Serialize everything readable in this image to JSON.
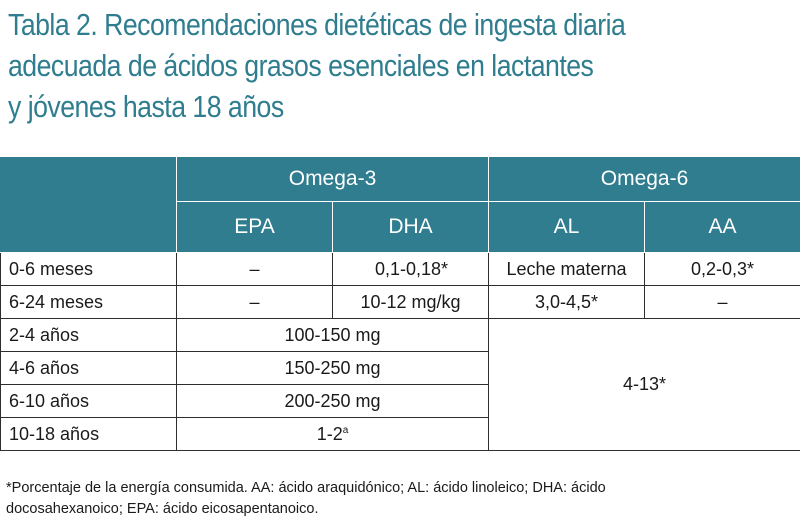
{
  "title": {
    "line1": "Tabla 2. Recomendaciones dietéticas de ingesta diaria",
    "line2": "adecuada de ácidos grasos esenciales en lactantes",
    "line3": "y jóvenes hasta 18 años"
  },
  "table": {
    "groups": {
      "omega3": "Omega-3",
      "omega6": "Omega-6"
    },
    "columns": {
      "epa": "EPA",
      "dha": "DHA",
      "al": "AL",
      "aa": "AA"
    },
    "rows": [
      {
        "age": "0-6 meses",
        "epa": "–",
        "dha": "0,1-0,18*",
        "al": "Leche materna",
        "aa": "0,2-0,3*"
      },
      {
        "age": "6-24 meses",
        "epa": "–",
        "dha": "10-12 mg/kg",
        "al": "3,0-4,5*",
        "aa": "–"
      },
      {
        "age": "2-4 años",
        "omega3": "100-150 mg"
      },
      {
        "age": "4-6 años",
        "omega3": "150-250 mg"
      },
      {
        "age": "6-10 años",
        "omega3": "200-250 mg"
      },
      {
        "age": "10-18 años",
        "omega3": "1-2",
        "omega3_sup": "a"
      }
    ],
    "omega6_merged": "4-13*"
  },
  "footnote": {
    "line1": "*Porcentaje de la energía consumida. AA: ácido araquidónico; AL: ácido linoleico; DHA: ácido",
    "line2": "docosahexanoico; EPA: ácido eicosapentanoico."
  },
  "colors": {
    "header_bg": "#2f7d8f",
    "title": "#2f7d8f",
    "border": "#2e2e2e"
  }
}
